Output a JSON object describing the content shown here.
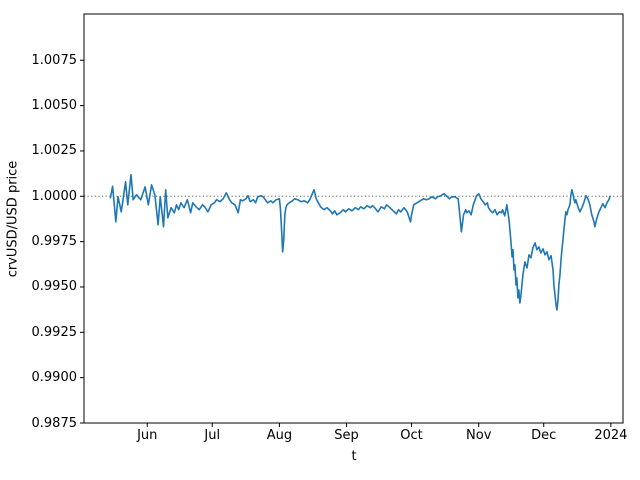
{
  "figure": {
    "background": "#ffffff",
    "line_color": "#1f77b4",
    "reference_line_color": "#7f7f7f",
    "spine_color": "#000000",
    "text_color": "#000000"
  },
  "chart_data": {
    "type": "line",
    "title": "",
    "xlabel": "t",
    "ylabel": "crvUSD/USD price",
    "legend": null,
    "grid": false,
    "x_unit": "days since 2023-05-01",
    "xlim": [
      1.8,
      250.6
    ],
    "ylim": [
      0.9875,
      1.01005
    ],
    "x_ticks": [
      {
        "pos": 31,
        "label": "Jun"
      },
      {
        "pos": 61,
        "label": "Jul"
      },
      {
        "pos": 92,
        "label": "Aug"
      },
      {
        "pos": 123,
        "label": "Sep"
      },
      {
        "pos": 153,
        "label": "Oct"
      },
      {
        "pos": 184,
        "label": "Nov"
      },
      {
        "pos": 214,
        "label": "Dec"
      },
      {
        "pos": 245,
        "label": "2024"
      }
    ],
    "y_ticks": [
      0.9875,
      0.99,
      0.9925,
      0.995,
      0.9975,
      1.0,
      1.0025,
      1.005,
      1.0075
    ],
    "reference_line": {
      "value": 1.0,
      "style": "dotted",
      "color": "#7f7f7f"
    },
    "series": [
      {
        "name": "crvUSD/USD price",
        "color": "#1f77b4",
        "points": [
          [
            14,
            0.99992
          ],
          [
            15,
            1.00055
          ],
          [
            16.5,
            0.99859
          ],
          [
            17.5,
            0.99997
          ],
          [
            19,
            0.99914
          ],
          [
            21,
            1.0008
          ],
          [
            22,
            0.99953
          ],
          [
            23.5,
            1.00119
          ],
          [
            24.5,
            0.99981
          ],
          [
            26,
            1.00008
          ],
          [
            28,
            0.99981
          ],
          [
            30,
            1.00052
          ],
          [
            31.5,
            0.99953
          ],
          [
            33,
            1.00063
          ],
          [
            34.5,
            1.00008
          ],
          [
            36,
            0.99843
          ],
          [
            37,
            0.99997
          ],
          [
            38.5,
            0.99832
          ],
          [
            39.5,
            1.00036
          ],
          [
            40.5,
            0.99881
          ],
          [
            42,
            0.99937
          ],
          [
            43.5,
            0.99909
          ],
          [
            44.5,
            0.99953
          ],
          [
            45.5,
            0.99926
          ],
          [
            46.5,
            0.99964
          ],
          [
            48,
            0.99937
          ],
          [
            49.5,
            0.99981
          ],
          [
            51,
            0.99909
          ],
          [
            52,
            0.99964
          ],
          [
            53.5,
            0.99942
          ],
          [
            55,
            0.99926
          ],
          [
            56.5,
            0.99953
          ],
          [
            57.5,
            0.99942
          ],
          [
            59,
            0.99914
          ],
          [
            60.5,
            0.99953
          ],
          [
            62,
            0.99964
          ],
          [
            63,
            0.99981
          ],
          [
            64.5,
            0.9997
          ],
          [
            66,
            0.99986
          ],
          [
            67.5,
            1.00019
          ],
          [
            69,
            0.99981
          ],
          [
            70,
            0.99964
          ],
          [
            71.5,
            0.99953
          ],
          [
            73,
            0.99909
          ],
          [
            74,
            0.99981
          ],
          [
            75,
            0.99975
          ],
          [
            76.5,
            0.99986
          ],
          [
            77.5,
            1.00003
          ],
          [
            78.5,
            0.9997
          ],
          [
            80,
            0.99981
          ],
          [
            81,
            0.99964
          ],
          [
            82,
            0.99997
          ],
          [
            83.5,
            1.00003
          ],
          [
            84.5,
            0.99997
          ],
          [
            85.5,
            0.99981
          ],
          [
            86.5,
            0.99964
          ],
          [
            88,
            0.99975
          ],
          [
            89,
            0.99964
          ],
          [
            90.5,
            0.99981
          ],
          [
            92,
            0.99986
          ],
          [
            92.5,
            0.99926
          ],
          [
            93,
            0.99815
          ],
          [
            93.5,
            0.99694
          ],
          [
            94,
            0.9976
          ],
          [
            94.5,
            0.99898
          ],
          [
            95,
            0.99937
          ],
          [
            95.5,
            0.99953
          ],
          [
            96.5,
            0.99964
          ],
          [
            98,
            0.99975
          ],
          [
            99,
            0.99986
          ],
          [
            100.5,
            0.99981
          ],
          [
            102,
            0.9997
          ],
          [
            103.5,
            0.99975
          ],
          [
            105,
            0.99964
          ],
          [
            106,
            0.99981
          ],
          [
            108,
            1.00036
          ],
          [
            109,
            0.99986
          ],
          [
            110,
            0.99964
          ],
          [
            111,
            0.99942
          ],
          [
            112.5,
            0.99926
          ],
          [
            114,
            0.99937
          ],
          [
            115.5,
            0.9992
          ],
          [
            116.5,
            0.99903
          ],
          [
            117.5,
            0.9992
          ],
          [
            118.5,
            0.99898
          ],
          [
            120,
            0.99909
          ],
          [
            121.5,
            0.99926
          ],
          [
            122.5,
            0.99914
          ],
          [
            124,
            0.99931
          ],
          [
            125.5,
            0.9992
          ],
          [
            127,
            0.99937
          ],
          [
            128.5,
            0.99926
          ],
          [
            129.5,
            0.99942
          ],
          [
            131,
            0.99931
          ],
          [
            132.5,
            0.99948
          ],
          [
            134,
            0.99937
          ],
          [
            135,
            0.99948
          ],
          [
            136,
            0.99937
          ],
          [
            137.5,
            0.99914
          ],
          [
            139,
            0.99942
          ],
          [
            140.5,
            0.99931
          ],
          [
            141.5,
            0.99953
          ],
          [
            143,
            0.99937
          ],
          [
            144.5,
            0.9992
          ],
          [
            146,
            0.99903
          ],
          [
            147,
            0.99926
          ],
          [
            148,
            0.99914
          ],
          [
            149.5,
            0.99937
          ],
          [
            151,
            0.99914
          ],
          [
            152.5,
            0.99859
          ],
          [
            153,
            0.99898
          ],
          [
            154,
            0.99953
          ],
          [
            155.5,
            0.99964
          ],
          [
            157,
            0.99975
          ],
          [
            158.5,
            0.99986
          ],
          [
            160,
            0.99981
          ],
          [
            161,
            0.99986
          ],
          [
            162.5,
            0.99997
          ],
          [
            164,
            0.99986
          ],
          [
            165,
            0.99997
          ],
          [
            166.5,
            1.00003
          ],
          [
            168,
            1.00014
          ],
          [
            169.5,
            0.99997
          ],
          [
            170.5,
            0.99986
          ],
          [
            171.5,
            0.99997
          ],
          [
            173,
            0.99997
          ],
          [
            174.5,
            0.99986
          ],
          [
            175.5,
            0.9987
          ],
          [
            176,
            0.99804
          ],
          [
            177,
            0.99898
          ],
          [
            178,
            0.99926
          ],
          [
            178.5,
            0.99909
          ],
          [
            179.5,
            0.9992
          ],
          [
            180.5,
            0.99898
          ],
          [
            181.5,
            0.99953
          ],
          [
            182.5,
            0.99986
          ],
          [
            183,
            1.00003
          ],
          [
            184,
            1.00014
          ],
          [
            185,
            0.99986
          ],
          [
            186,
            0.9997
          ],
          [
            187,
            0.99953
          ],
          [
            188,
            0.99964
          ],
          [
            188.5,
            0.99937
          ],
          [
            189.5,
            0.9992
          ],
          [
            190.5,
            0.99909
          ],
          [
            191.5,
            0.99926
          ],
          [
            192.5,
            0.99898
          ],
          [
            193.5,
            0.99914
          ],
          [
            194.5,
            0.99909
          ],
          [
            195,
            0.99926
          ],
          [
            196,
            0.99892
          ],
          [
            197,
            0.99953
          ],
          [
            198,
            0.9987
          ],
          [
            199,
            0.99732
          ],
          [
            199.4,
            0.99666
          ],
          [
            199.8,
            0.99705
          ],
          [
            200.3,
            0.99594
          ],
          [
            200.7,
            0.99622
          ],
          [
            201.2,
            0.99511
          ],
          [
            201.6,
            0.9955
          ],
          [
            202.1,
            0.9944
          ],
          [
            202.5,
            0.99484
          ],
          [
            203,
            0.99412
          ],
          [
            203.5,
            0.99456
          ],
          [
            204.4,
            0.99566
          ],
          [
            205.3,
            0.99638
          ],
          [
            206.3,
            0.99605
          ],
          [
            207.2,
            0.99677
          ],
          [
            208.1,
            0.99661
          ],
          [
            209,
            0.99716
          ],
          [
            210,
            0.99743
          ],
          [
            210.9,
            0.99705
          ],
          [
            211.8,
            0.99721
          ],
          [
            212.7,
            0.99688
          ],
          [
            213.7,
            0.9971
          ],
          [
            214.6,
            0.99677
          ],
          [
            215.5,
            0.99694
          ],
          [
            216.4,
            0.9965
          ],
          [
            217.4,
            0.99672
          ],
          [
            218.3,
            0.99594
          ],
          [
            218.7,
            0.99511
          ],
          [
            219.2,
            0.99456
          ],
          [
            219.7,
            0.99401
          ],
          [
            220.1,
            0.99373
          ],
          [
            220.6,
            0.99428
          ],
          [
            221,
            0.99511
          ],
          [
            221.5,
            0.99566
          ],
          [
            222,
            0.9965
          ],
          [
            222.4,
            0.99705
          ],
          [
            222.9,
            0.9976
          ],
          [
            223.3,
            0.99815
          ],
          [
            223.8,
            0.9987
          ],
          [
            224.2,
            0.99914
          ],
          [
            224.7,
            0.99898
          ],
          [
            225.2,
            0.99926
          ],
          [
            226.1,
            0.99953
          ],
          [
            226.5,
            1.00003
          ],
          [
            227,
            1.00036
          ],
          [
            227.5,
            1.00014
          ],
          [
            227.9,
            0.99986
          ],
          [
            228.4,
            0.99964
          ],
          [
            228.8,
            0.99981
          ],
          [
            229.8,
            0.99942
          ],
          [
            230.7,
            0.99914
          ],
          [
            231.6,
            0.99937
          ],
          [
            232.5,
            0.99964
          ],
          [
            233.5,
            1.00003
          ],
          [
            234.4,
            0.99986
          ],
          [
            235.3,
            0.99953
          ],
          [
            236.2,
            0.99898
          ],
          [
            237.2,
            0.99859
          ],
          [
            237.6,
            0.99832
          ],
          [
            238.6,
            0.99881
          ],
          [
            239.5,
            0.99914
          ],
          [
            240.4,
            0.99937
          ],
          [
            241.3,
            0.99959
          ],
          [
            242.3,
            0.99937
          ],
          [
            243.2,
            0.99964
          ],
          [
            244.1,
            0.99981
          ],
          [
            244.6,
            1.0
          ]
        ]
      }
    ]
  }
}
